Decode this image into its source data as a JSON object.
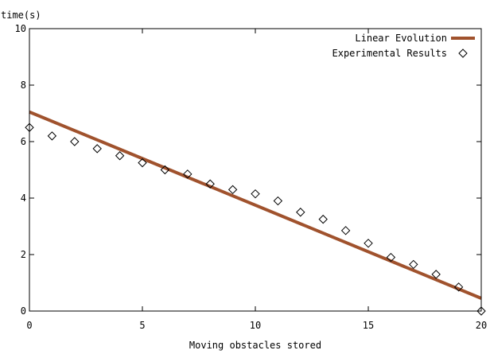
{
  "chart_data": {
    "type": "line",
    "ylabel": "time(s)",
    "xlabel": "Moving obstacles stored",
    "xlim": [
      0,
      20
    ],
    "ylim": [
      0,
      10
    ],
    "xticks": [
      0,
      5,
      10,
      15,
      20
    ],
    "yticks": [
      0,
      2,
      4,
      6,
      8,
      10
    ],
    "x_tick_labels": [
      "0",
      "5",
      "10",
      "15",
      "20"
    ],
    "y_tick_labels": [
      "0",
      "2",
      "4",
      "6",
      "8",
      "10"
    ],
    "grid": false,
    "legend_position": "top-right",
    "series": [
      {
        "name": "Linear Evolution",
        "style": "line",
        "color": "#a0522d",
        "x": [
          0,
          20
        ],
        "y": [
          7.05,
          0.45
        ]
      },
      {
        "name": "Experimental Results",
        "style": "markers",
        "marker": "diamond",
        "color": "#000000",
        "x": [
          0,
          1,
          2,
          3,
          4,
          5,
          6,
          7,
          8,
          9,
          10,
          11,
          12,
          13,
          14,
          15,
          16,
          17,
          18,
          19,
          20
        ],
        "y": [
          6.5,
          6.2,
          6.0,
          5.75,
          5.5,
          5.25,
          5.0,
          4.85,
          4.5,
          4.3,
          4.15,
          3.9,
          3.5,
          3.25,
          2.85,
          2.4,
          1.9,
          1.65,
          1.3,
          0.85,
          0.0
        ]
      }
    ]
  }
}
